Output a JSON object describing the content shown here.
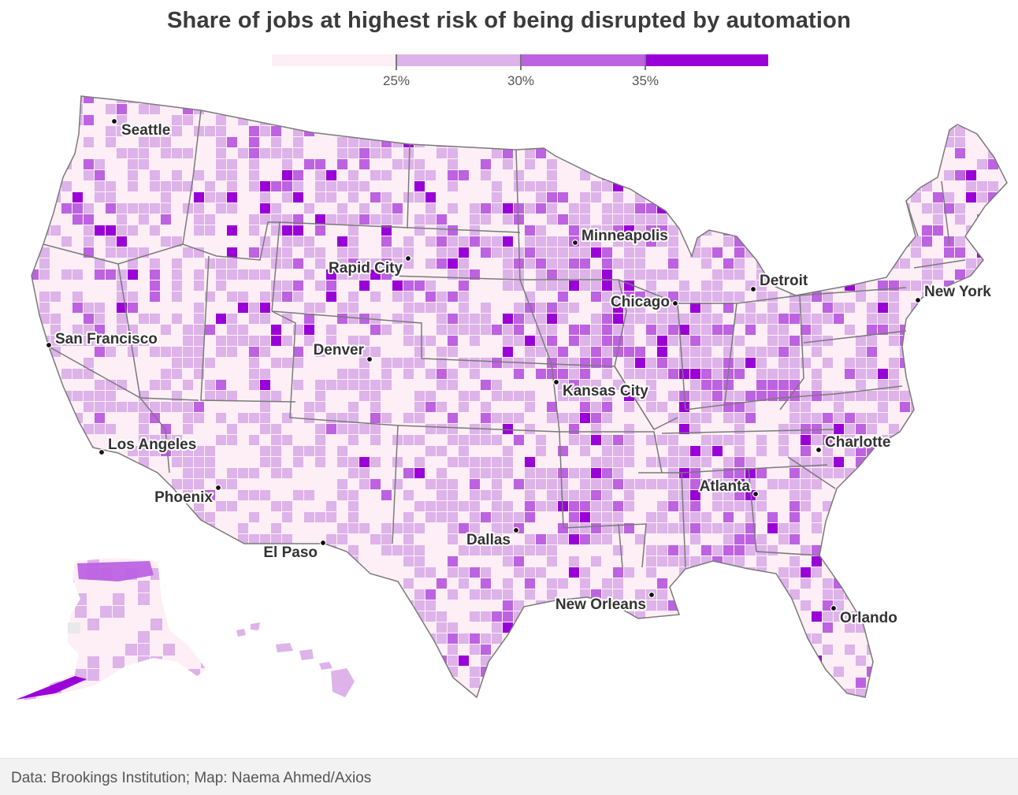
{
  "title": "Share of jobs at highest risk of being disrupted by automation",
  "legend": {
    "bins": [
      {
        "color": "#fdeff5"
      },
      {
        "color": "#ddb3ea"
      },
      {
        "color": "#bd62e1"
      },
      {
        "color": "#9a00d8"
      }
    ],
    "thresholds": [
      "25%",
      "30%",
      "35%"
    ]
  },
  "colors": {
    "state_border": "#7a7a7a",
    "county_border": "#ffffff",
    "city_dot": "#111111",
    "label": "#333333"
  },
  "cities": [
    {
      "name": "Seattle"
    },
    {
      "name": "San Francisco"
    },
    {
      "name": "Los Angeles"
    },
    {
      "name": "Phoenix"
    },
    {
      "name": "El Paso"
    },
    {
      "name": "Denver"
    },
    {
      "name": "Rapid City"
    },
    {
      "name": "Minneapolis"
    },
    {
      "name": "Chicago"
    },
    {
      "name": "Detroit"
    },
    {
      "name": "New York"
    },
    {
      "name": "Kansas City"
    },
    {
      "name": "Dallas"
    },
    {
      "name": "New Orleans"
    },
    {
      "name": "Atlanta"
    },
    {
      "name": "Charlotte"
    },
    {
      "name": "Orlando"
    }
  ],
  "source": "Data: Brookings Institution; Map: Naema Ahmed/Axios"
}
